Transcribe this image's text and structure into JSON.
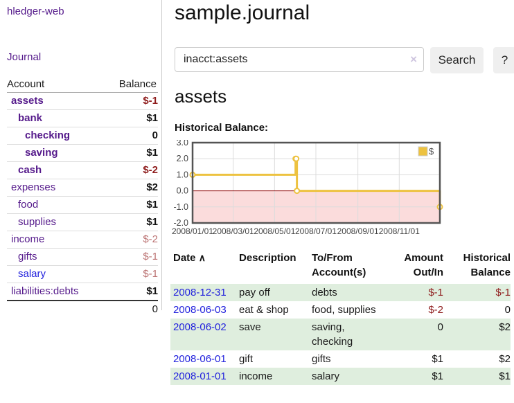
{
  "app": {
    "brand": "hledger-web",
    "nav_journal": "Journal"
  },
  "sidebar": {
    "header": {
      "account": "Account",
      "balance": "Balance"
    },
    "accounts": [
      {
        "name": "assets",
        "balance": "$-1"
      },
      {
        "name": "bank",
        "balance": "$1"
      },
      {
        "name": "checking",
        "balance": "0"
      },
      {
        "name": "saving",
        "balance": "$1"
      },
      {
        "name": "cash",
        "balance": "$-2"
      },
      {
        "name": "expenses",
        "balance": "$2"
      },
      {
        "name": "food",
        "balance": "$1"
      },
      {
        "name": "supplies",
        "balance": "$1"
      },
      {
        "name": "income",
        "balance": "$-2"
      },
      {
        "name": "gifts",
        "balance": "$-1"
      },
      {
        "name": "salary",
        "balance": "$-1"
      },
      {
        "name": "liabilities:debts",
        "balance": "$1"
      }
    ],
    "total": "0"
  },
  "header": {
    "title": "sample.journal",
    "search_value": "inacct:assets",
    "clear_icon": "×",
    "search_button": "Search",
    "help_button": "?"
  },
  "report": {
    "heading": "assets",
    "chart_label": "Historical Balance:"
  },
  "chart_data": {
    "type": "line",
    "step": true,
    "title": "Historical Balance",
    "legend": "$",
    "legend_position": "top-right",
    "grid": true,
    "xrange": [
      "2008-01-01",
      "2008-12-31"
    ],
    "ylim": [
      -2.0,
      3.0
    ],
    "yticks": [
      -2.0,
      -1.0,
      0.0,
      1.0,
      2.0,
      3.0
    ],
    "xticks": [
      "2008/01/01",
      "2008/03/01",
      "2008/05/01",
      "2008/07/01",
      "2008/09/01",
      "2008/11/01"
    ],
    "series": [
      {
        "name": "$",
        "color": "#edc240",
        "points": [
          [
            "2008-01-01",
            1
          ],
          [
            "2008-06-01",
            2
          ],
          [
            "2008-06-02",
            2
          ],
          [
            "2008-06-03",
            0
          ],
          [
            "2008-12-31",
            -1
          ]
        ]
      }
    ],
    "colors": {
      "negative_region": "#fbdcdc",
      "zero_line": "#8b0000",
      "gridline": "#dcdcdc",
      "border": "#545454",
      "tick_text": "#444444",
      "marker_fill": "#ffffff"
    }
  },
  "register": {
    "sort_icon": "∧",
    "headers": {
      "date": "Date",
      "description": "Description",
      "accounts": "To/From\nAccount(s)",
      "amount": "Amount\nOut/In",
      "balance": "Historical\nBalance"
    },
    "rows": [
      {
        "date": "2008-12-31",
        "description": "pay off",
        "accounts": "debts",
        "amount": "$-1",
        "balance": "$-1"
      },
      {
        "date": "2008-06-03",
        "description": "eat & shop",
        "accounts": "food, supplies",
        "amount": "$-2",
        "balance": "0"
      },
      {
        "date": "2008-06-02",
        "description": "save",
        "accounts": "saving,\nchecking",
        "amount": "0",
        "balance": "$2"
      },
      {
        "date": "2008-06-01",
        "description": "gift",
        "accounts": "gifts",
        "amount": "$1",
        "balance": "$2"
      },
      {
        "date": "2008-01-01",
        "description": "income",
        "accounts": "salary",
        "amount": "$1",
        "balance": "$1"
      }
    ]
  }
}
